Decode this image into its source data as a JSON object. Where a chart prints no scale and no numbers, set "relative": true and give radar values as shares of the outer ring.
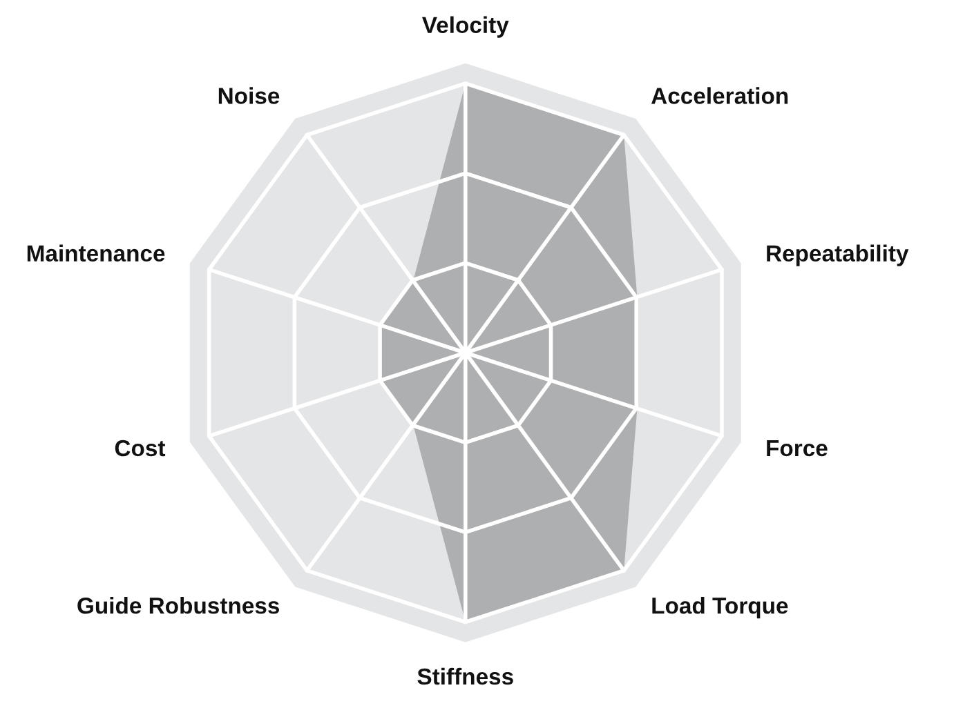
{
  "chart_data": {
    "type": "radar",
    "relative": true,
    "grid": true,
    "categories": [
      "Velocity",
      "Acceleration",
      "Repeatability",
      "Force",
      "Load Torque",
      "Stiffness",
      "Guide Robustness",
      "Cost",
      "Maintenance",
      "Noise"
    ],
    "series": [
      {
        "color": "#aeafb1",
        "values": [
          1,
          1,
          0.67,
          0.67,
          1,
          1,
          0.33,
          0.33,
          0.33,
          0.33
        ]
      }
    ]
  }
}
